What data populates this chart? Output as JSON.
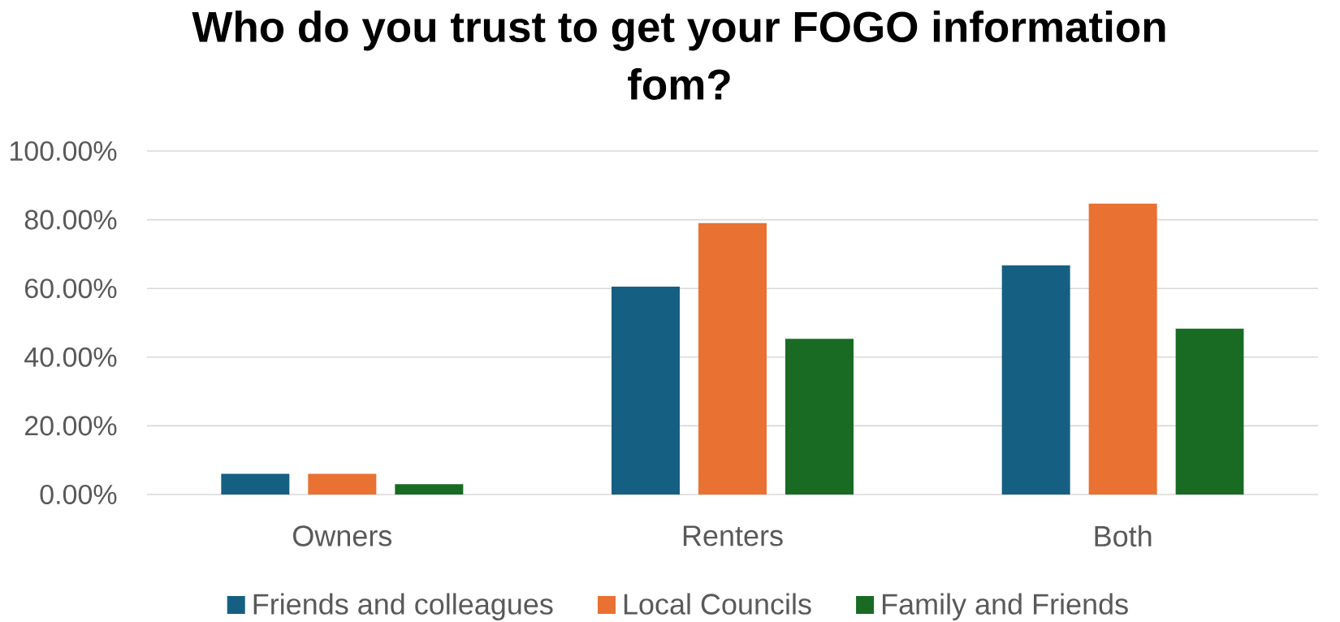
{
  "chart_data": {
    "type": "bar",
    "title": "Who do you trust to get your FOGO information fom?",
    "categories": [
      "Owners",
      "Renters",
      "Both"
    ],
    "series": [
      {
        "name": "Friends and colleagues",
        "color": "#156082",
        "values": [
          6,
          60.5,
          66.7
        ]
      },
      {
        "name": "Local Councils",
        "color": "#e97132",
        "values": [
          6,
          79,
          84.7
        ]
      },
      {
        "name": "Family and Friends",
        "color": "#196b24",
        "values": [
          3,
          45.3,
          48.3
        ]
      }
    ],
    "ylim": [
      0,
      100
    ],
    "yticks": [
      {
        "value": 0,
        "label": "0.00%"
      },
      {
        "value": 20,
        "label": "20.00%"
      },
      {
        "value": 40,
        "label": "40.00%"
      },
      {
        "value": 60,
        "label": "60.00%"
      },
      {
        "value": 80,
        "label": "80.00%"
      },
      {
        "value": 100,
        "label": "100.00%"
      }
    ],
    "grid": "y",
    "legend": "bottom"
  }
}
